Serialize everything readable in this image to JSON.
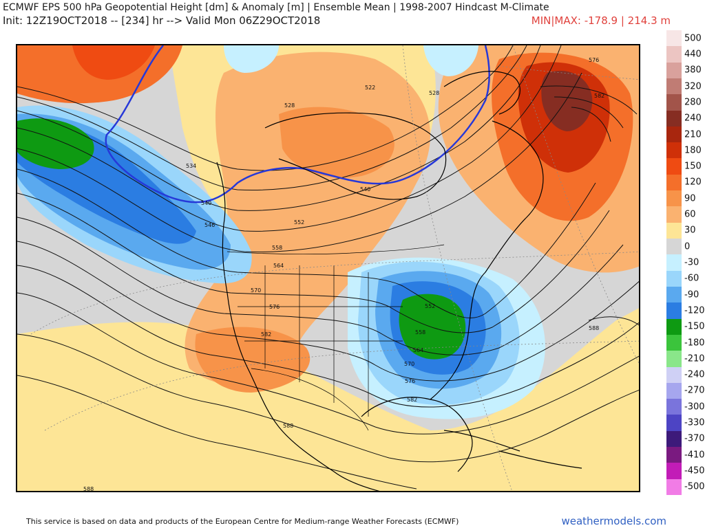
{
  "header": {
    "title": "ECMWF EPS 500 hPa Geopotential Height [dm] & Anomaly [m] | Ensemble Mean | 1998-2007 Hindcast M-Climate",
    "subtitle": "Init: 12Z19OCT2018 -- [234] hr --> Valid Mon 06Z29OCT2018",
    "minmax": "MIN|MAX: -178.9 | 214.3 m"
  },
  "legend": {
    "entries": [
      {
        "label": "500",
        "color": "#f7e6e6"
      },
      {
        "label": "440",
        "color": "#ecc5c2"
      },
      {
        "label": "380",
        "color": "#d9a19c"
      },
      {
        "label": "320",
        "color": "#c07c74"
      },
      {
        "label": "280",
        "color": "#a2544a"
      },
      {
        "label": "240",
        "color": "#862d22"
      },
      {
        "label": "210",
        "color": "#a8260e"
      },
      {
        "label": "180",
        "color": "#cf3008"
      },
      {
        "label": "150",
        "color": "#ef4b12"
      },
      {
        "label": "120",
        "color": "#f46f2a"
      },
      {
        "label": "90",
        "color": "#f79349"
      },
      {
        "label": "60",
        "color": "#fab270"
      },
      {
        "label": "30",
        "color": "#fde596"
      },
      {
        "label": "0",
        "color": "#d6d6d6"
      },
      {
        "label": "-30",
        "color": "#c6f0ff"
      },
      {
        "label": "-60",
        "color": "#9ad6fb"
      },
      {
        "label": "-90",
        "color": "#5aa9ef"
      },
      {
        "label": "-120",
        "color": "#2b7de2"
      },
      {
        "label": "-150",
        "color": "#0e9a12"
      },
      {
        "label": "-180",
        "color": "#3bc43c"
      },
      {
        "label": "-210",
        "color": "#8ae68a"
      },
      {
        "label": "-240",
        "color": "#cfd0f5"
      },
      {
        "label": "-270",
        "color": "#a6a6ee"
      },
      {
        "label": "-300",
        "color": "#7a74dc"
      },
      {
        "label": "-330",
        "color": "#4d44c4"
      },
      {
        "label": "-370",
        "color": "#3d1a7a"
      },
      {
        "label": "-410",
        "color": "#7a1a80"
      },
      {
        "label": "-450",
        "color": "#c21cb7"
      },
      {
        "label": "-500",
        "color": "#f17ce6"
      }
    ]
  },
  "map": {
    "contour_labels": [
      "576",
      "582",
      "522",
      "528",
      "528",
      "534",
      "540",
      "540",
      "546",
      "552",
      "558",
      "564",
      "570",
      "576",
      "582",
      "552",
      "558",
      "564",
      "570",
      "576",
      "582",
      "588",
      "588",
      "588"
    ]
  },
  "footer": {
    "credit": "This service is based on data and products of the European Centre for Medium-range Weather Forecasts (ECMWF)",
    "site": "weathermodels.com"
  }
}
